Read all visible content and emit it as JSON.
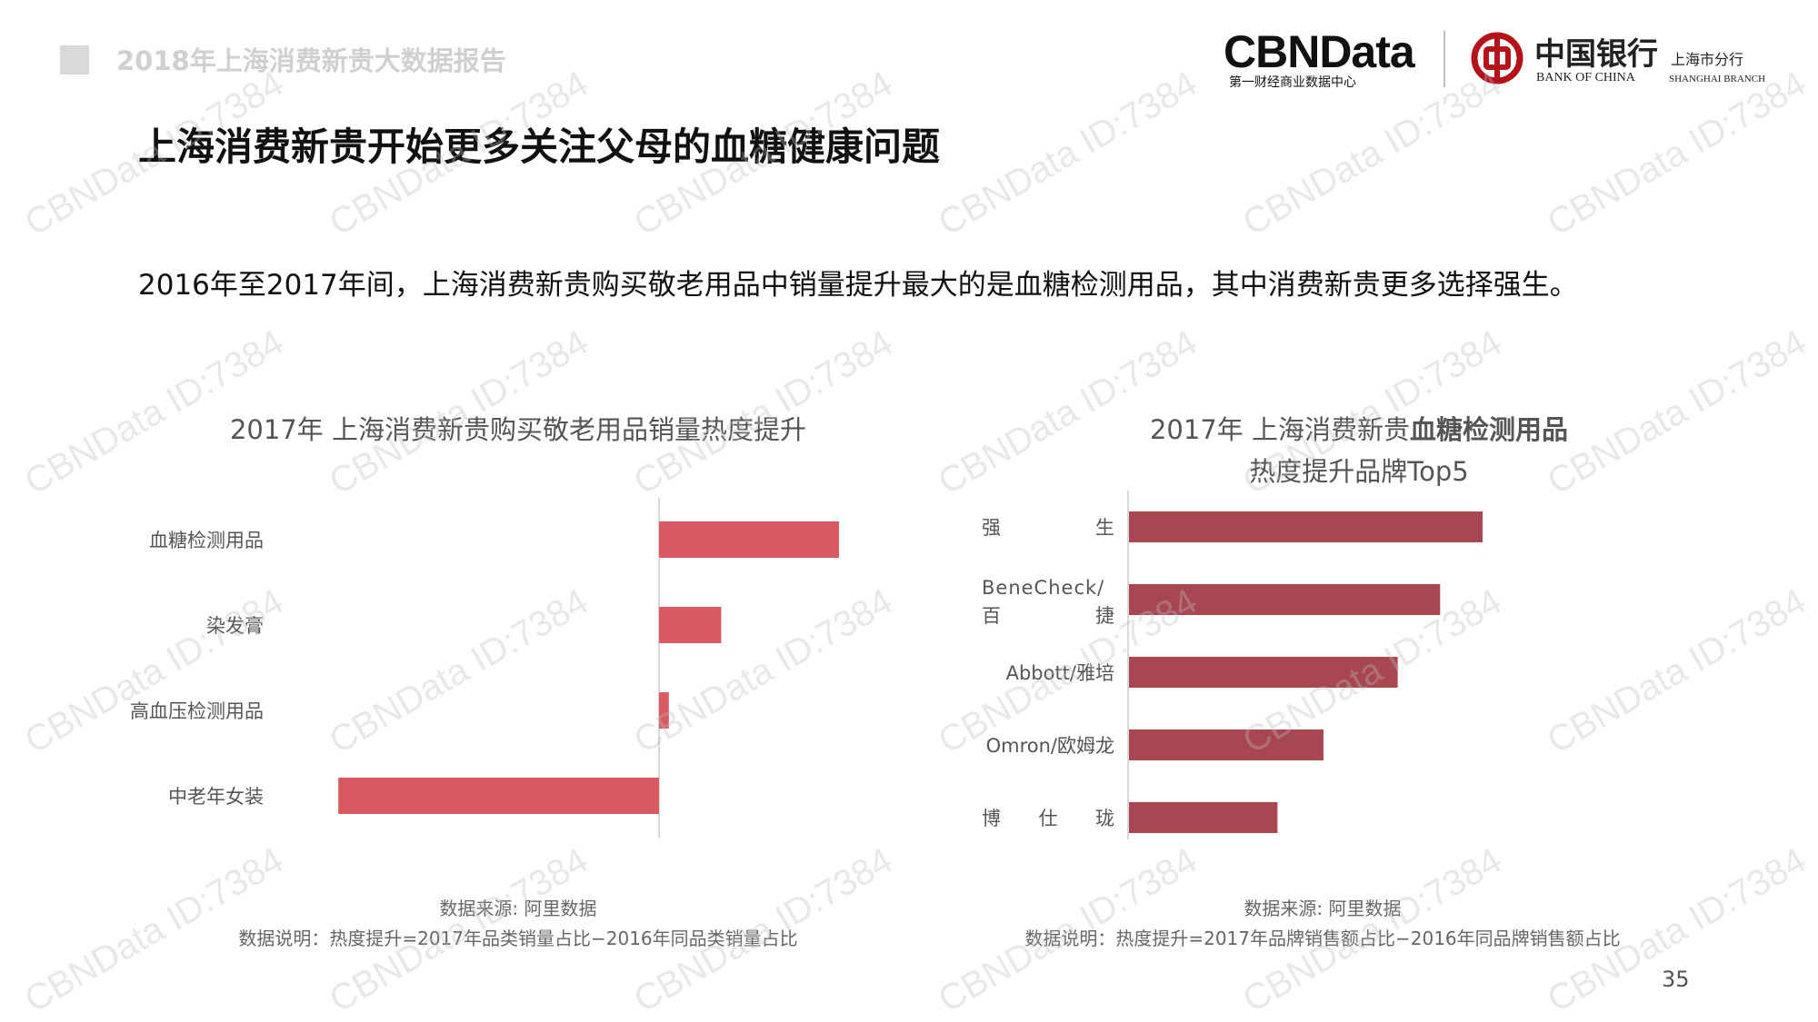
{
  "header": {
    "report_title": "2018年上海消费新贵大数据报告",
    "cbn_logo": "CBNData",
    "cbn_sub": "第一财经商业数据中心",
    "boc_cn": "中国银行",
    "boc_cn_sub": "上海市分行",
    "boc_en": "BANK OF CHINA",
    "boc_en_sub": "SHANGHAI BRANCH",
    "colors": {
      "boc_red": "#b5121b"
    }
  },
  "page_title": "上海消费新贵开始更多关注父母的血糖健康问题",
  "subtitle": "2016年至2017年间，上海消费新贵购买敬老用品中销量提升最大的是血糖检测用品，其中消费新贵更多选择强生。",
  "watermark_text": "CBNData ID:7384",
  "page_number": "35",
  "chart_data": [
    {
      "type": "bar",
      "orientation": "horizontal",
      "title": "2017年 上海消费新贵购买敬老用品销量热度提升",
      "categories": [
        "血糖检测用品",
        "染发膏",
        "高血压检测用品",
        "中老年女装"
      ],
      "values": [
        0.55,
        0.19,
        0.03,
        -0.98
      ],
      "color": "#d95a60",
      "source": "数据来源: 阿里数据",
      "explanation": "数据说明：热度提升=2017年品类销量占比−2016年同品类销量占比"
    },
    {
      "type": "bar",
      "orientation": "horizontal",
      "title_plain": "2017年  上海消费新贵",
      "title_bold": "血糖检测用品",
      "title_line2": "热度提升品牌Top5",
      "categories": [
        [
          "强",
          "生"
        ],
        [
          "BeneCheck/",
          "百",
          "捷"
        ],
        [
          "Abbott/雅培"
        ],
        [
          "Omron/欧姆龙"
        ],
        [
          "博",
          "仕",
          "珑"
        ]
      ],
      "values": [
        1.0,
        0.88,
        0.76,
        0.55,
        0.42
      ],
      "color": "#a84752",
      "source": "数据来源: 阿里数据",
      "explanation": "数据说明：热度提升=2017年品牌销售额占比−2016年同品牌销售额占比"
    }
  ]
}
